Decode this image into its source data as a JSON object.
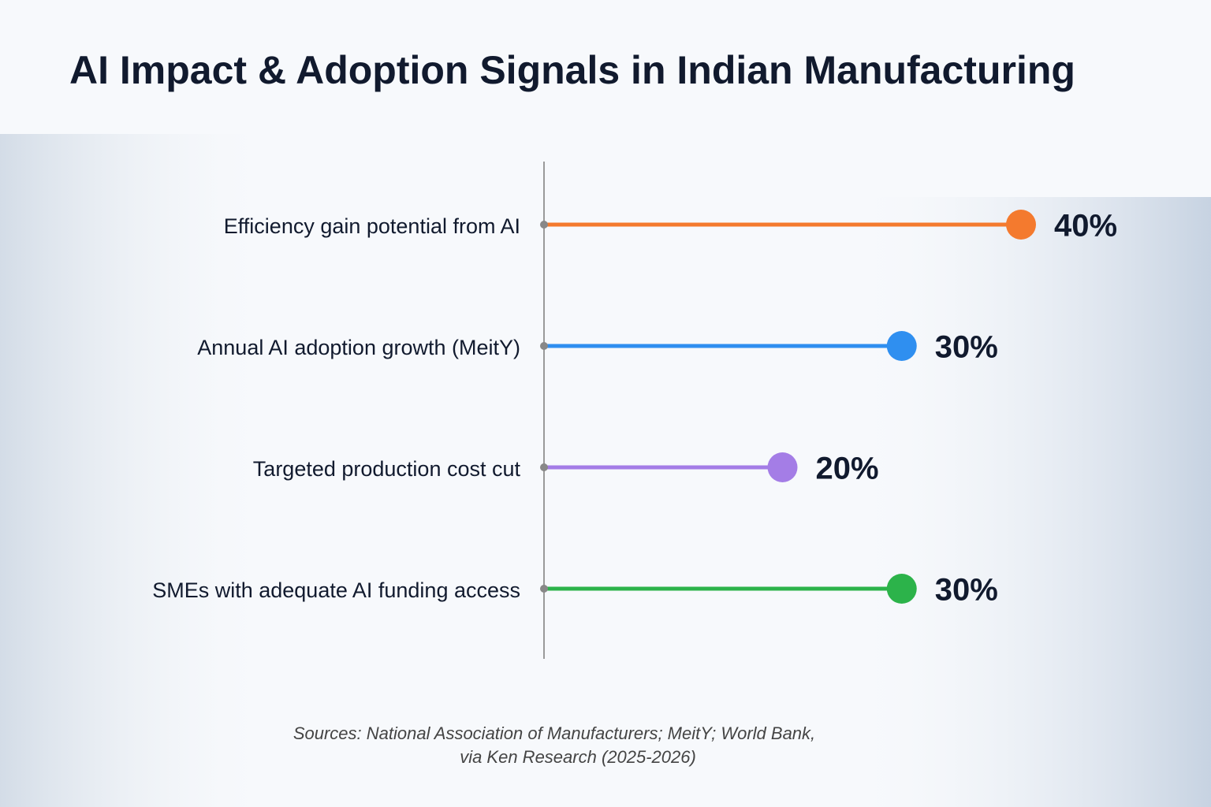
{
  "chart_data": {
    "type": "lollipop",
    "title": "AI Impact & Adoption Signals in Indian Manufacturing",
    "categories": [
      "Efficiency gain potential from AI",
      "Annual AI adoption growth (MeitY)",
      "Targeted production cost cut",
      "SMEs with adequate AI funding access"
    ],
    "values": [
      40,
      30,
      20,
      30
    ],
    "value_labels": [
      "40%",
      "30%",
      "20%",
      "30%"
    ],
    "colors": [
      "#f47a2e",
      "#2f8ff0",
      "#a47de6",
      "#2cb34a"
    ],
    "source": [
      "Sources:  National Association of Manufacturers; MeitY; World Bank,",
      "via Ken Research (2025-2026)"
    ]
  }
}
